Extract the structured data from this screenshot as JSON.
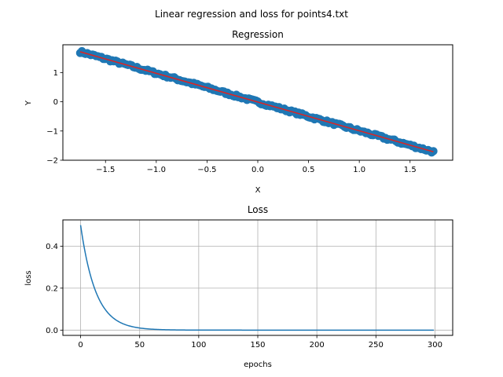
{
  "figure": {
    "suptitle": "Linear regression and loss for points4.txt"
  },
  "chart_data": [
    {
      "type": "scatter",
      "title": "Regression",
      "xlabel": "X",
      "ylabel": "Y",
      "xlim": [
        -1.92,
        1.92
      ],
      "ylim": [
        -2.0,
        1.95
      ],
      "xticks": [
        -1.5,
        -1.0,
        -0.5,
        0.0,
        0.5,
        1.0,
        1.5
      ],
      "xtick_labels": [
        "−1.5",
        "−1.0",
        "−0.5",
        "0.0",
        "0.5",
        "1.0",
        "1.5"
      ],
      "yticks": [
        -2,
        -1,
        0,
        1
      ],
      "ytick_labels": [
        "−2",
        "−1",
        "0",
        "1"
      ],
      "grid": false,
      "points": {
        "x_range": [
          -1.75,
          1.73
        ],
        "count": 200,
        "slope": -0.985,
        "intercept": -0.01,
        "color": "#1f77b4"
      },
      "fit_line": {
        "x": [
          -1.75,
          1.73
        ],
        "y": [
          1.71,
          -1.71
        ],
        "color": "#d62728"
      }
    },
    {
      "type": "line",
      "title": "Loss",
      "xlabel": "epochs",
      "ylabel": "loss",
      "xlim": [
        -15,
        315
      ],
      "ylim": [
        -0.025,
        0.525
      ],
      "xticks": [
        0,
        50,
        100,
        150,
        200,
        250,
        300
      ],
      "xtick_labels": [
        "0",
        "50",
        "100",
        "150",
        "200",
        "250",
        "300"
      ],
      "yticks": [
        0.0,
        0.2,
        0.4
      ],
      "ytick_labels": [
        "0.0",
        "0.2",
        "0.4"
      ],
      "grid": true,
      "series": [
        {
          "epochs": 300,
          "initial_loss": 0.5,
          "decay_rate": 0.078,
          "color": "#1f77b4"
        }
      ]
    }
  ]
}
